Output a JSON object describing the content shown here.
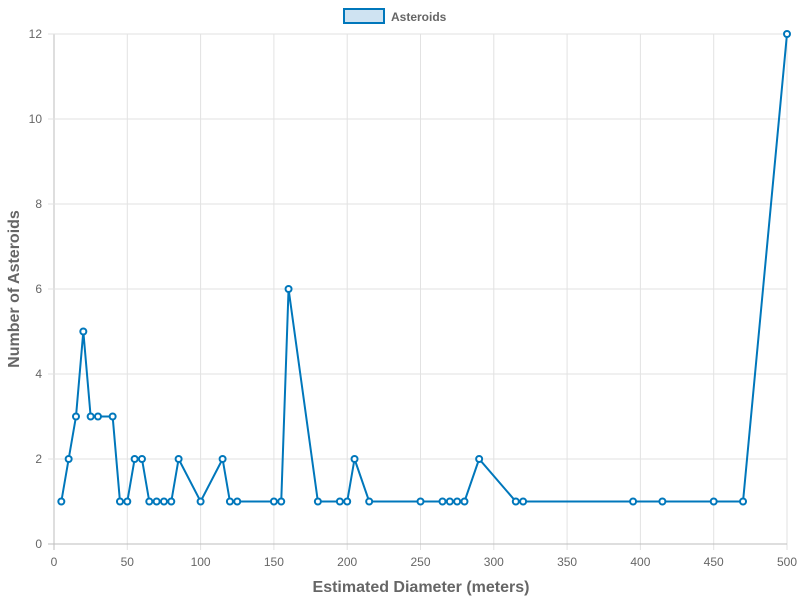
{
  "chart_data": {
    "type": "line",
    "xlabel": "Estimated Diameter (meters)",
    "ylabel": "Number of Asteroids",
    "xlim": [
      0,
      500
    ],
    "ylim": [
      0,
      12
    ],
    "xticks": [
      0,
      50,
      100,
      150,
      200,
      250,
      300,
      350,
      400,
      450,
      500
    ],
    "yticks": [
      0,
      2,
      4,
      6,
      8,
      10,
      12
    ],
    "grid": true,
    "legend": "top-center",
    "series": [
      {
        "name": "Asteroids",
        "color": "#0077bb",
        "fill": "#cfe3f2",
        "points": [
          [
            5,
            1
          ],
          [
            10,
            2
          ],
          [
            15,
            3
          ],
          [
            20,
            5
          ],
          [
            25,
            3
          ],
          [
            30,
            3
          ],
          [
            40,
            3
          ],
          [
            45,
            1
          ],
          [
            50,
            1
          ],
          [
            55,
            2
          ],
          [
            60,
            2
          ],
          [
            65,
            1
          ],
          [
            70,
            1
          ],
          [
            75,
            1
          ],
          [
            80,
            1
          ],
          [
            85,
            2
          ],
          [
            100,
            1
          ],
          [
            115,
            2
          ],
          [
            120,
            1
          ],
          [
            125,
            1
          ],
          [
            150,
            1
          ],
          [
            155,
            1
          ],
          [
            160,
            6
          ],
          [
            180,
            1
          ],
          [
            195,
            1
          ],
          [
            200,
            1
          ],
          [
            205,
            2
          ],
          [
            215,
            1
          ],
          [
            250,
            1
          ],
          [
            265,
            1
          ],
          [
            270,
            1
          ],
          [
            275,
            1
          ],
          [
            280,
            1
          ],
          [
            290,
            2
          ],
          [
            315,
            1
          ],
          [
            320,
            1
          ],
          [
            395,
            1
          ],
          [
            415,
            1
          ],
          [
            450,
            1
          ],
          [
            470,
            1
          ],
          [
            500,
            12
          ]
        ]
      }
    ]
  }
}
